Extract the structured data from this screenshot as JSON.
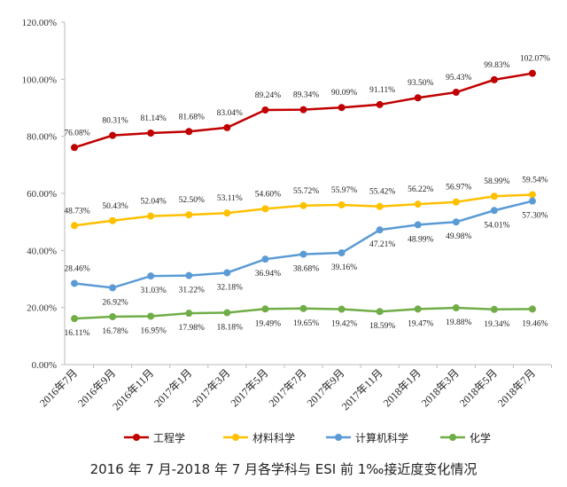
{
  "chart_data": {
    "type": "line",
    "title": "2016 年 7 月-2018 年 7 月各学科与 ESI 前 1‰接近度变化情况",
    "categories": [
      "2016年7月",
      "2016年9月",
      "2016年11月",
      "2017年1月",
      "2017年3月",
      "2017年5月",
      "2017年7月",
      "2017年9月",
      "2017年11月",
      "2018年1月",
      "2018年3月",
      "2018年5月",
      "2018年7月"
    ],
    "ylim": [
      0,
      120
    ],
    "yticks": [
      "0.00%",
      "20.00%",
      "40.00%",
      "60.00%",
      "80.00%",
      "100.00%",
      "120.00%"
    ],
    "grid": false,
    "legend": "bottom",
    "series": [
      {
        "name": "工程学",
        "color": "#C00000",
        "values": [
          76.08,
          80.31,
          81.14,
          81.68,
          83.04,
          89.24,
          89.34,
          90.09,
          91.11,
          93.5,
          95.43,
          99.83,
          102.07
        ]
      },
      {
        "name": "材料科学",
        "color": "#FFC000",
        "values": [
          48.73,
          50.43,
          52.04,
          52.5,
          53.11,
          54.6,
          55.72,
          55.97,
          55.42,
          56.22,
          56.97,
          58.99,
          59.54
        ]
      },
      {
        "name": "计算机科学",
        "color": "#5B9BD5",
        "values": [
          28.46,
          26.92,
          31.03,
          31.22,
          32.18,
          36.94,
          38.68,
          39.16,
          47.21,
          48.99,
          49.98,
          54.01,
          57.3
        ]
      },
      {
        "name": "化学",
        "color": "#70AD47",
        "values": [
          16.11,
          16.78,
          16.95,
          17.98,
          18.18,
          19.49,
          19.65,
          19.42,
          18.59,
          19.47,
          19.88,
          19.34,
          19.46
        ]
      }
    ]
  }
}
